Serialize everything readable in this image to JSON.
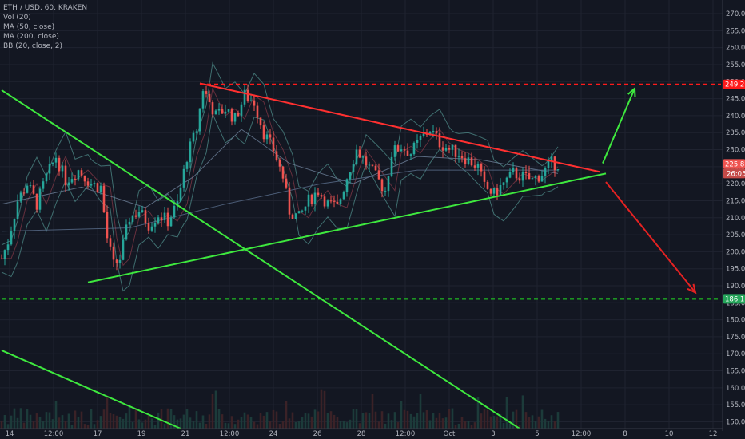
{
  "legend": {
    "symbol": "ETH / USD, 60, KRAKEN",
    "indicators": [
      "Vol (20)",
      "MA (50, close)",
      "MA (200, close)",
      "BB (20, close, 2)"
    ]
  },
  "chart_data": {
    "type": "candlestick",
    "symbol": "ETH / USD",
    "interval": "60",
    "exchange": "KRAKEN",
    "ylim": [
      148,
      274
    ],
    "y_ticks": [
      150,
      155,
      160,
      165,
      170,
      175,
      180,
      185,
      190,
      195,
      200,
      205,
      210,
      215,
      220,
      225,
      230,
      235,
      240,
      245,
      250,
      255,
      260,
      265,
      270
    ],
    "y_tick_labels": [
      "150.00",
      "155.00",
      "160.00",
      "165.00",
      "170.00",
      "175.00",
      "180.00",
      "185.00",
      "190.00",
      "195.00",
      "200.00",
      "205.00",
      "210.00",
      "215.00",
      "220.00",
      "225.00",
      "230.00",
      "235.00",
      "240.00",
      "245.00",
      "250.00",
      "255.00",
      "260.00",
      "265.00",
      "270.00"
    ],
    "x_ticks": [
      "14",
      "12:00",
      "17",
      "19",
      "21",
      "12:00",
      "24",
      "26",
      "28",
      "12:00",
      "Oct",
      "3",
      "5",
      "12:00",
      "8",
      "10",
      "12"
    ],
    "price_labels": [
      {
        "value": 249.2,
        "label": "249.20",
        "color": "#ff1a1a"
      },
      {
        "value": 225.8,
        "label": "225.80",
        "color": "#ef5350"
      },
      {
        "value": 186.16,
        "label": "186.16",
        "color": "#26a65b"
      }
    ],
    "countdown_label": "26:05",
    "price_path": [
      {
        "t": 0,
        "p": 198
      },
      {
        "t": 2,
        "p": 203
      },
      {
        "t": 5,
        "p": 215
      },
      {
        "t": 8,
        "p": 220
      },
      {
        "t": 11,
        "p": 214
      },
      {
        "t": 14,
        "p": 222
      },
      {
        "t": 17,
        "p": 228
      },
      {
        "t": 20,
        "p": 221
      },
      {
        "t": 24,
        "p": 224
      },
      {
        "t": 28,
        "p": 220
      },
      {
        "t": 31,
        "p": 219
      },
      {
        "t": 33,
        "p": 204
      },
      {
        "t": 35,
        "p": 196
      },
      {
        "t": 37,
        "p": 198
      },
      {
        "t": 40,
        "p": 210
      },
      {
        "t": 43,
        "p": 212
      },
      {
        "t": 46,
        "p": 208
      },
      {
        "t": 49,
        "p": 211
      },
      {
        "t": 52,
        "p": 209
      },
      {
        "t": 55,
        "p": 214
      },
      {
        "t": 58,
        "p": 228
      },
      {
        "t": 61,
        "p": 236
      },
      {
        "t": 63,
        "p": 248
      },
      {
        "t": 65,
        "p": 244
      },
      {
        "t": 67,
        "p": 240
      },
      {
        "t": 70,
        "p": 242
      },
      {
        "t": 73,
        "p": 239
      },
      {
        "t": 76,
        "p": 246
      },
      {
        "t": 79,
        "p": 244
      },
      {
        "t": 82,
        "p": 235
      },
      {
        "t": 85,
        "p": 230
      },
      {
        "t": 88,
        "p": 222
      },
      {
        "t": 90,
        "p": 212
      },
      {
        "t": 93,
        "p": 210
      },
      {
        "t": 96,
        "p": 215
      },
      {
        "t": 99,
        "p": 218
      },
      {
        "t": 102,
        "p": 214
      },
      {
        "t": 105,
        "p": 213
      },
      {
        "t": 108,
        "p": 222
      },
      {
        "t": 111,
        "p": 230
      },
      {
        "t": 114,
        "p": 226
      },
      {
        "t": 117,
        "p": 222
      },
      {
        "t": 120,
        "p": 218
      },
      {
        "t": 122,
        "p": 229
      },
      {
        "t": 125,
        "p": 231
      },
      {
        "t": 128,
        "p": 229
      },
      {
        "t": 131,
        "p": 233
      },
      {
        "t": 134,
        "p": 236
      },
      {
        "t": 137,
        "p": 232
      },
      {
        "t": 140,
        "p": 230
      },
      {
        "t": 143,
        "p": 229
      },
      {
        "t": 146,
        "p": 227
      },
      {
        "t": 149,
        "p": 225
      },
      {
        "t": 151,
        "p": 219
      },
      {
        "t": 154,
        "p": 217
      },
      {
        "t": 157,
        "p": 220
      },
      {
        "t": 160,
        "p": 223
      },
      {
        "t": 163,
        "p": 222
      },
      {
        "t": 166,
        "p": 221
      },
      {
        "t": 169,
        "p": 223
      },
      {
        "t": 172,
        "p": 226
      },
      {
        "t": 174,
        "p": 225.8
      }
    ],
    "ma50": [
      {
        "t": 0,
        "p": 214
      },
      {
        "t": 25,
        "p": 219
      },
      {
        "t": 45,
        "p": 213
      },
      {
        "t": 60,
        "p": 222
      },
      {
        "t": 75,
        "p": 236
      },
      {
        "t": 90,
        "p": 226
      },
      {
        "t": 110,
        "p": 220
      },
      {
        "t": 130,
        "p": 228
      },
      {
        "t": 150,
        "p": 227
      },
      {
        "t": 174,
        "p": 223
      }
    ],
    "ma200": [
      {
        "t": 0,
        "p": 206
      },
      {
        "t": 40,
        "p": 207
      },
      {
        "t": 70,
        "p": 214
      },
      {
        "t": 100,
        "p": 220
      },
      {
        "t": 130,
        "p": 224
      },
      {
        "t": 174,
        "p": 224
      }
    ],
    "trendlines": [
      {
        "name": "descending-resistance",
        "color": "#ff3030",
        "from": {
          "t": 62,
          "p": 249.5
        },
        "to": {
          "t": 187,
          "p": 223.5
        }
      },
      {
        "name": "resistance-level",
        "color": "#ff1a1a",
        "dashed": true,
        "from": {
          "t": 62,
          "p": 249.2
        },
        "to": {
          "t": 225,
          "p": 249.2
        }
      },
      {
        "name": "ascending-support",
        "color": "#3ee83e",
        "from": {
          "t": 27,
          "p": 191
        },
        "to": {
          "t": 189,
          "p": 223
        }
      },
      {
        "name": "support-level",
        "color": "#22dd22",
        "dashed": true,
        "from": {
          "t": 0,
          "p": 186.16
        },
        "to": {
          "t": 225,
          "p": 186.16
        }
      },
      {
        "name": "falling-channel-upper",
        "color": "#3ee83e",
        "from": {
          "t": 0,
          "p": 247.5
        },
        "to": {
          "t": 162,
          "p": 148
        }
      },
      {
        "name": "falling-channel-lower",
        "color": "#3ee83e",
        "from": {
          "t": 0,
          "p": 171
        },
        "to": {
          "t": 56,
          "p": 148
        }
      }
    ],
    "arrows": [
      {
        "name": "bullish-arrow",
        "color": "#3ee83e",
        "from": {
          "t": 188,
          "p": 226
        },
        "to": {
          "t": 198,
          "p": 248
        }
      },
      {
        "name": "bearish-arrow",
        "color": "#e52222",
        "from": {
          "t": 189,
          "p": 220.5
        },
        "to": {
          "t": 217,
          "p": 188
        }
      }
    ],
    "grid": true
  }
}
